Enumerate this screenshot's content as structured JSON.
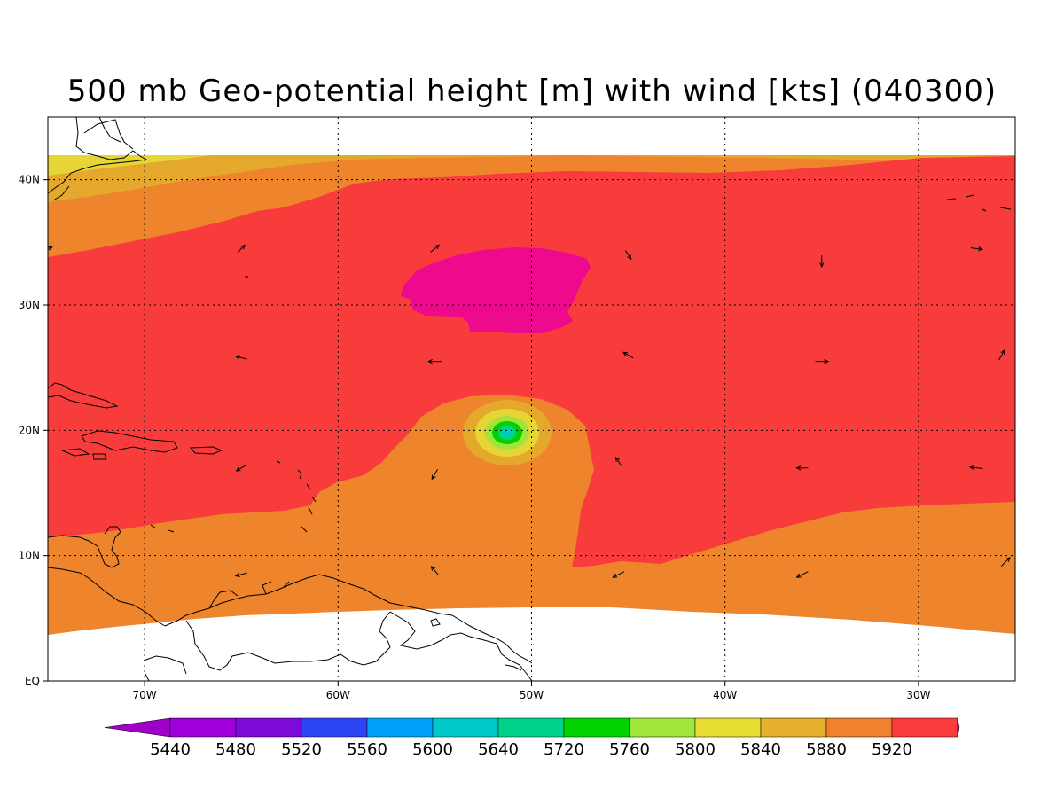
{
  "title": "500 mb Geo-potential height [m] with wind [kts] (040300)",
  "map": {
    "lon_range": [
      -75,
      -25
    ],
    "lat_range": [
      0,
      45
    ],
    "data_lat_range": [
      4,
      42
    ],
    "x_ticks": [
      {
        "lon": -70,
        "label": "70W"
      },
      {
        "lon": -60,
        "label": "60W"
      },
      {
        "lon": -50,
        "label": "50W"
      },
      {
        "lon": -40,
        "label": "40W"
      },
      {
        "lon": -30,
        "label": "30W"
      }
    ],
    "y_ticks": [
      {
        "lat": 0,
        "label": "EQ"
      },
      {
        "lat": 10,
        "label": "10N"
      },
      {
        "lat": 20,
        "label": "20N"
      },
      {
        "lat": 30,
        "label": "30N"
      },
      {
        "lat": 40,
        "label": "40N"
      }
    ],
    "grid": true,
    "fill_colors": {
      "c5800": "#e6d534",
      "c5840": "#e3a82c",
      "c5880": "#ee842c",
      "c5920": "#f83c3c",
      "c_max": "#ee0a8c",
      "c5760": "#a4e23c",
      "c5720": "#00d100",
      "c5640": "#00d38a",
      "c5600": "#02c8c8"
    },
    "low_center": {
      "lon": -51.5,
      "lat": 20,
      "label": "cyclone core"
    },
    "high_center": {
      "lon": -50.5,
      "lat": 31.5
    }
  },
  "wind_vectors": [
    {
      "lon": -75,
      "lat": 34.5,
      "dx": 0.6,
      "dy": 0.2
    },
    {
      "lon": -65,
      "lat": 34.5,
      "dx": 0.5,
      "dy": 0.5
    },
    {
      "lon": -55,
      "lat": 34.5,
      "dx": 0.6,
      "dy": 0.5
    },
    {
      "lon": -45,
      "lat": 34,
      "dx": 0.4,
      "dy": -0.6
    },
    {
      "lon": -35,
      "lat": 33.5,
      "dx": 0,
      "dy": -0.8
    },
    {
      "lon": -27,
      "lat": 34.5,
      "dx": 0.8,
      "dy": -0.1
    },
    {
      "lon": -65,
      "lat": 25.8,
      "dx": -0.8,
      "dy": 0.2
    },
    {
      "lon": -55,
      "lat": 25.5,
      "dx": -0.9,
      "dy": 0
    },
    {
      "lon": -45,
      "lat": 26,
      "dx": -0.7,
      "dy": 0.4
    },
    {
      "lon": -35,
      "lat": 25.5,
      "dx": 0.9,
      "dy": 0
    },
    {
      "lon": -25.7,
      "lat": 26,
      "dx": 0.4,
      "dy": 0.7
    },
    {
      "lon": -65,
      "lat": 17,
      "dx": -0.7,
      "dy": -0.4
    },
    {
      "lon": -55,
      "lat": 16.5,
      "dx": -0.4,
      "dy": -0.7
    },
    {
      "lon": -45.5,
      "lat": 17.5,
      "dx": -0.4,
      "dy": 0.6
    },
    {
      "lon": -36,
      "lat": 17,
      "dx": -0.8,
      "dy": 0
    },
    {
      "lon": -27,
      "lat": 17,
      "dx": -0.9,
      "dy": 0.1
    },
    {
      "lon": -65,
      "lat": 8.5,
      "dx": -0.8,
      "dy": -0.2
    },
    {
      "lon": -55,
      "lat": 8.8,
      "dx": -0.5,
      "dy": 0.6
    },
    {
      "lon": -45.5,
      "lat": 8.5,
      "dx": -0.8,
      "dy": -0.4
    },
    {
      "lon": -36,
      "lat": 8.5,
      "dx": -0.8,
      "dy": -0.4
    },
    {
      "lon": -25.5,
      "lat": 9.5,
      "dx": 0.6,
      "dy": 0.6
    }
  ],
  "colorbar": {
    "colors": [
      "#9f00d9",
      "#7d0ad9",
      "#2c46f4",
      "#00a0fa",
      "#00c8c8",
      "#00d28a",
      "#00d300",
      "#a0e63c",
      "#e6dc32",
      "#e6af2d",
      "#f0822d",
      "#fa3c3c"
    ],
    "left_arrow_color": "#a000c8",
    "right_arrow_color": "#f00a82",
    "labels": [
      "5440",
      "5480",
      "5520",
      "5560",
      "5600",
      "5640",
      "5720",
      "5760",
      "5800",
      "5840",
      "5880",
      "5920"
    ]
  }
}
